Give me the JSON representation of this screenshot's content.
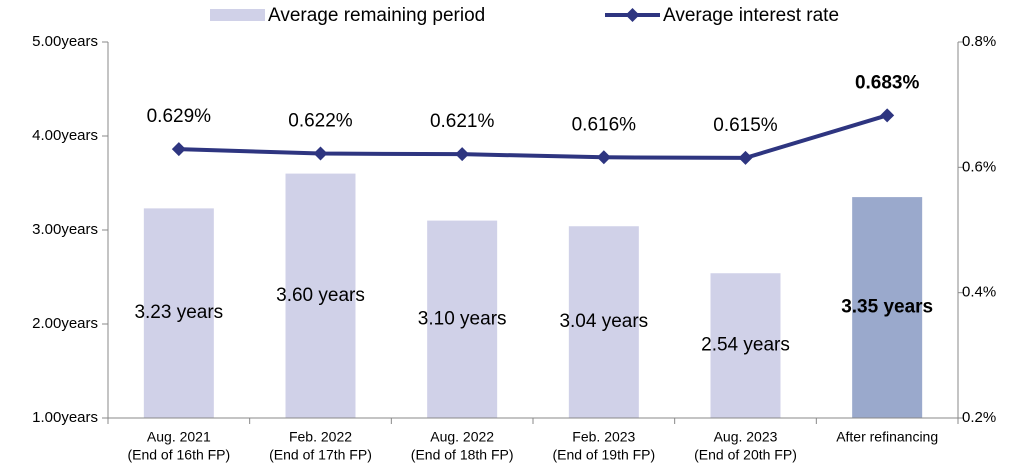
{
  "chart_data": {
    "type": "combo",
    "categories": [
      [
        "Aug. 2021",
        "(End of 16th FP)"
      ],
      [
        "Feb. 2022",
        "(End of 17th FP)"
      ],
      [
        "Aug. 2022",
        "(End of 18th FP)"
      ],
      [
        "Feb. 2023",
        "(End of 19th FP)"
      ],
      [
        "Aug. 2023",
        "(End of 20th FP)"
      ],
      [
        "After refinancing"
      ]
    ],
    "series": [
      {
        "name": "Average remaining period",
        "type": "bar",
        "color": "#d0d1e8",
        "colors": [
          "#d0d1e8",
          "#d0d1e8",
          "#d0d1e8",
          "#d0d1e8",
          "#d0d1e8",
          "#9aa9cc"
        ],
        "values": [
          3.23,
          3.6,
          3.1,
          3.04,
          2.54,
          3.35
        ],
        "value_labels": [
          "3.23 years",
          "3.60 years",
          "3.10 years",
          "3.04 years",
          "2.54 years",
          "3.35 years"
        ]
      },
      {
        "name": "Average interest rate",
        "type": "line",
        "axis": "y2",
        "color": "#2e3580",
        "values": [
          0.629,
          0.622,
          0.621,
          0.616,
          0.615,
          0.683
        ],
        "value_labels": [
          "0.629%",
          "0.622%",
          "0.621%",
          "0.616%",
          "0.615%",
          "0.683%"
        ]
      }
    ],
    "emphasis": [
      false,
      false,
      false,
      false,
      false,
      true
    ],
    "ylim": [
      1,
      5
    ],
    "yticks": [
      {
        "value": 1,
        "label": "1.00years"
      },
      {
        "value": 2,
        "label": "2.00years"
      },
      {
        "value": 3,
        "label": "3.00years"
      },
      {
        "value": 4,
        "label": "4.00years"
      },
      {
        "value": 5,
        "label": "5.00years"
      }
    ],
    "y2lim": [
      0.2,
      0.8
    ],
    "y2ticks": [
      {
        "value": 0.2,
        "label": "0.2%"
      },
      {
        "value": 0.4,
        "label": "0.4%"
      },
      {
        "value": 0.6,
        "label": "0.6%"
      },
      {
        "value": 0.8,
        "label": "0.8%"
      }
    ],
    "grid": false,
    "legend": "top"
  }
}
